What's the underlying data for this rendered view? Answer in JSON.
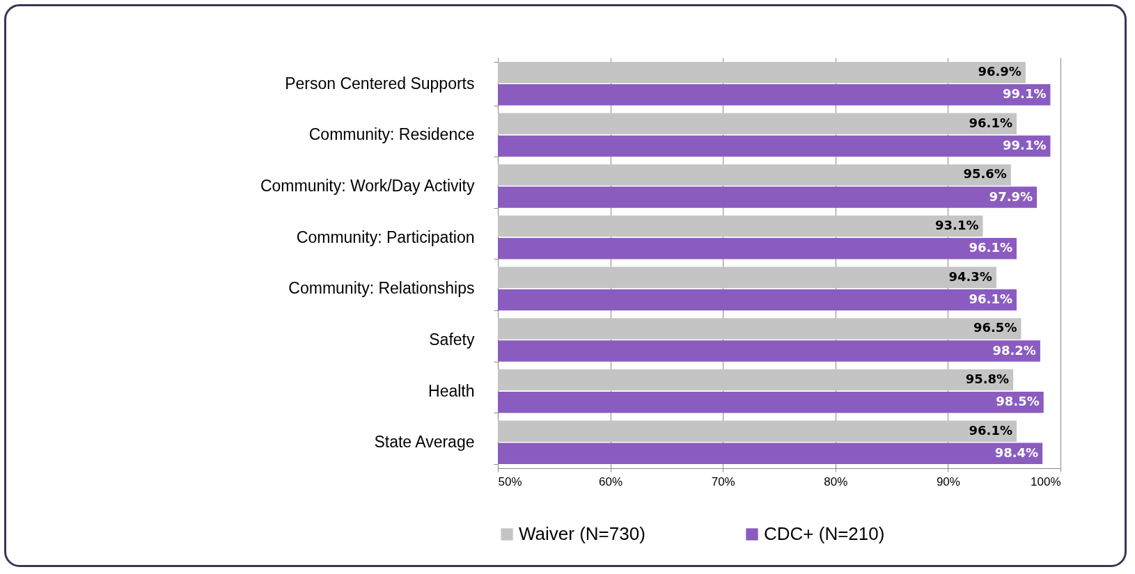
{
  "chart_data": {
    "type": "bar",
    "orientation": "horizontal",
    "categories": [
      "Person Centered Supports",
      "Community:  Residence",
      "Community: Work/Day Activity",
      "Community: Participation",
      "Community: Relationships",
      "Safety",
      "Health",
      "State Average"
    ],
    "series": [
      {
        "name": "Waiver (N=730)",
        "color": "#c4c4c4",
        "values": [
          96.9,
          96.1,
          95.6,
          93.1,
          94.3,
          96.5,
          95.8,
          96.1
        ],
        "value_labels": [
          "96.9%",
          "96.1%",
          "95.6%",
          "93.1%",
          "94.3%",
          "96.5%",
          "95.8%",
          "96.1%"
        ]
      },
      {
        "name": "CDC+ (N=210)",
        "color": "#8a5cc0",
        "values": [
          99.1,
          99.1,
          97.9,
          96.1,
          96.1,
          98.2,
          98.5,
          98.4
        ],
        "value_labels": [
          "99.1%",
          "99.1%",
          "97.9%",
          "96.1%",
          "96.1%",
          "98.2%",
          "98.5%",
          "98.4%"
        ]
      }
    ],
    "xlim": [
      50,
      100
    ],
    "xticks": [
      {
        "value": 50,
        "label": "50%"
      },
      {
        "value": 60,
        "label": "60%"
      },
      {
        "value": 70,
        "label": "70%"
      },
      {
        "value": 80,
        "label": "80%"
      },
      {
        "value": 90,
        "label": "90%"
      },
      {
        "value": 100,
        "label": "100%"
      }
    ],
    "grid": "x",
    "legend": "bottom"
  }
}
